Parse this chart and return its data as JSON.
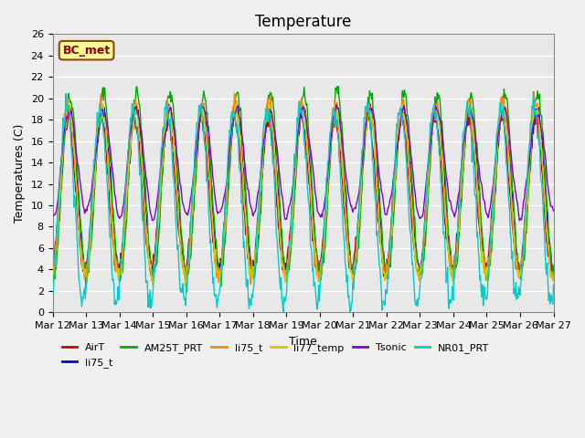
{
  "title": "Temperature",
  "xlabel": "Time",
  "ylabel": "Temperatures (C)",
  "ylim": [
    0,
    26
  ],
  "annotation": "BC_met",
  "x_tick_labels": [
    "Mar 12",
    "Mar 13",
    "Mar 14",
    "Mar 15",
    "Mar 16",
    "Mar 17",
    "Mar 18",
    "Mar 19",
    "Mar 20",
    "Mar 21",
    "Mar 22",
    "Mar 23",
    "Mar 24",
    "Mar 25",
    "Mar 26",
    "Mar 27"
  ],
  "legend_entries": [
    "AirT",
    "li75_t",
    "AM25T_PRT",
    "li75_t",
    "li77_temp",
    "Tsonic",
    "NR01_PRT"
  ],
  "line_colors": [
    "#cc0000",
    "#0000cc",
    "#00aa00",
    "#ff8800",
    "#cccc00",
    "#8800cc",
    "#00cccc"
  ],
  "bg_color": "#e8e8e8",
  "grid_color": "#ffffff",
  "title_fontsize": 12,
  "label_fontsize": 9,
  "tick_fontsize": 8
}
